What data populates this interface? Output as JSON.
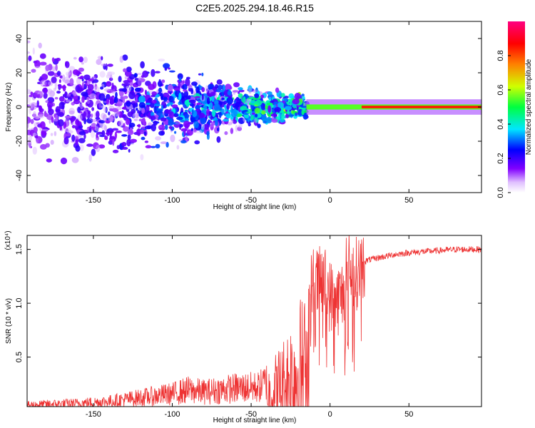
{
  "title": "C2E5.2025.294.18.46.R15",
  "chart_data": [
    {
      "type": "heatmap",
      "name": "spectrogram",
      "xlabel": "Height of straight line (km)",
      "ylabel": "Frequency (Hz)",
      "xlim": [
        -192,
        96
      ],
      "ylim": [
        -50,
        50
      ],
      "xticks": [
        -150,
        -100,
        -50,
        0,
        50
      ],
      "xtick_labels": [
        "-150",
        "-100",
        "-50",
        "0",
        "50"
      ],
      "yticks": [
        -40,
        -20,
        0,
        20,
        40
      ],
      "ytick_labels": [
        "-40",
        "-20",
        "0",
        "20",
        "40"
      ],
      "features": {
        "scatter_region_x": [
          -192,
          -15
        ],
        "band_start_x": -15,
        "band_center_freq": 0,
        "band_halfwidth_hz": 1.5
      },
      "colorbar": {
        "label": "Normalized spectral amplitude",
        "range": [
          0,
          1
        ],
        "ticks": [
          0,
          0.2,
          0.4,
          0.6,
          0.8
        ],
        "tick_labels": [
          "0.0",
          "0.2",
          "0.4",
          "0.6",
          "0.8"
        ],
        "colors": [
          "#ffffff",
          "#8000ff",
          "#0000ff",
          "#00e6ff",
          "#00ff40",
          "#d0ff00",
          "#ff8000",
          "#ff0000",
          "#ff0080"
        ]
      }
    },
    {
      "type": "line",
      "name": "snr",
      "xlabel": "Height of straight line (km)",
      "ylabel": "SNR (10 * v/v)",
      "scale_label": "(x10⁴)",
      "color": "#ee3333",
      "xlim": [
        -192,
        96
      ],
      "ylim": [
        0.04,
        1.63
      ],
      "xticks": [
        -150,
        -100,
        -50,
        0,
        50
      ],
      "xtick_labels": [
        "-150",
        "-100",
        "-50",
        "0",
        "50"
      ],
      "yticks": [
        0.5,
        1.0,
        1.5
      ],
      "ytick_labels": [
        "0.5",
        "1.0",
        "1.5"
      ],
      "envelope_x": [
        -192,
        -180,
        -160,
        -140,
        -120,
        -100,
        -90,
        -80,
        -60,
        -45,
        -38,
        -30,
        -25,
        -20,
        -16,
        -14,
        -12,
        -8,
        -4,
        0,
        4,
        8,
        10,
        12,
        16,
        20,
        24,
        30,
        40,
        50,
        60,
        70,
        80,
        96
      ],
      "envelope_y": [
        0.06,
        0.07,
        0.08,
        0.1,
        0.14,
        0.18,
        0.22,
        0.2,
        0.24,
        0.25,
        0.34,
        0.5,
        0.65,
        0.8,
        0.8,
        0.95,
        1.22,
        1.2,
        1.25,
        1.1,
        1.05,
        1.12,
        1.3,
        1.36,
        1.3,
        1.38,
        1.4,
        1.42,
        1.45,
        1.47,
        1.48,
        1.49,
        1.5,
        1.5
      ]
    }
  ]
}
